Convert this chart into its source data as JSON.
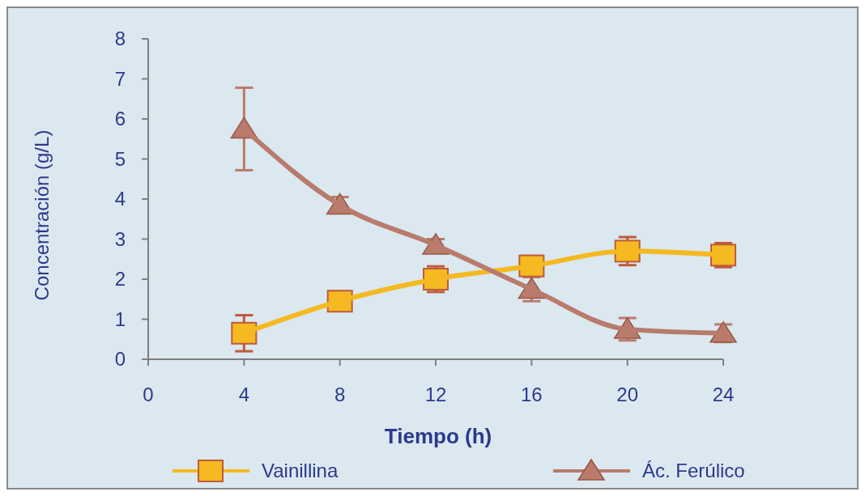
{
  "chart_data": {
    "type": "line",
    "xlabel": "Tiempo (h)",
    "ylabel": "Concentración (g/L)",
    "x": [
      4,
      8,
      12,
      16,
      20,
      24
    ],
    "xlim": [
      0,
      24
    ],
    "xticks": [
      0,
      4,
      8,
      12,
      16,
      20,
      24
    ],
    "ylim": [
      0,
      8
    ],
    "yticks": [
      0,
      1,
      2,
      3,
      4,
      5,
      6,
      7,
      8
    ],
    "grid": false,
    "legend": "bottom",
    "series": [
      {
        "name": "Vainillina",
        "color": "#f5b921",
        "marker": "square",
        "values": [
          0.65,
          1.45,
          2.0,
          2.33,
          2.7,
          2.6
        ],
        "errors": [
          0.45,
          null,
          0.32,
          0.25,
          0.35,
          0.3
        ]
      },
      {
        "name": "Ác. Ferúlico",
        "color": "#b97b6c",
        "marker": "triangle",
        "values": [
          5.75,
          3.85,
          2.85,
          1.75,
          0.75,
          0.65
        ],
        "errors": [
          1.03,
          0.2,
          0.15,
          0.3,
          0.28,
          0.22
        ]
      }
    ]
  }
}
